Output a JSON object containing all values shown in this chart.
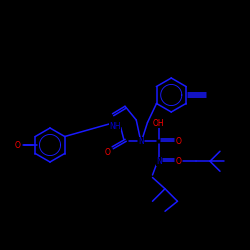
{
  "background_color": "#000000",
  "bond_color": "#1a1aff",
  "atom_colors": {
    "O": "#ff0000",
    "N": "#0000cd",
    "H_color": "#1a1aff"
  },
  "figsize": [
    2.5,
    2.5
  ],
  "dpi": 100,
  "lw": 1.1
}
